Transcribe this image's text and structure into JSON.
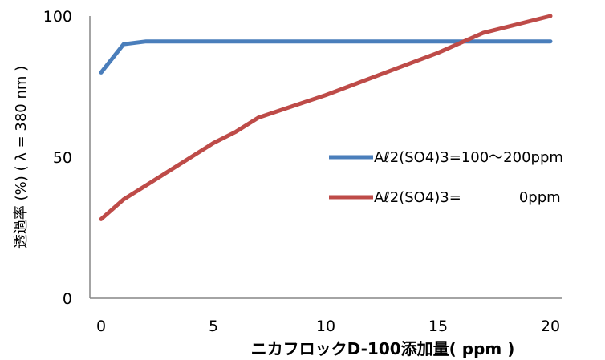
{
  "chart_data": {
    "type": "line",
    "title": "",
    "xlabel": "ニカフロックD-100添加量( ppm )",
    "ylabel": "透過率 (%) ( λ = 380 nm )",
    "xlim": [
      0,
      20
    ],
    "ylim": [
      0,
      100
    ],
    "x_ticks": [
      "0",
      "5",
      "10",
      "15",
      "20"
    ],
    "y_ticks": [
      "0",
      "50",
      "100"
    ],
    "grid": false,
    "legend": "right",
    "series": [
      {
        "name": "Aℓ2(SO4)3=100～200ppm",
        "color": "#4a7ebb",
        "x": [
          0,
          1,
          2,
          20
        ],
        "y": [
          80,
          90,
          91,
          91
        ]
      },
      {
        "name": "Aℓ2(SO4)3=　　　　0ppm",
        "color": "#be4b48",
        "x": [
          0,
          1,
          2,
          3,
          4,
          5,
          6,
          7,
          10,
          15,
          17,
          20
        ],
        "y": [
          28,
          35,
          40,
          45,
          50,
          55,
          59,
          64,
          72,
          87,
          94,
          100
        ]
      }
    ]
  }
}
